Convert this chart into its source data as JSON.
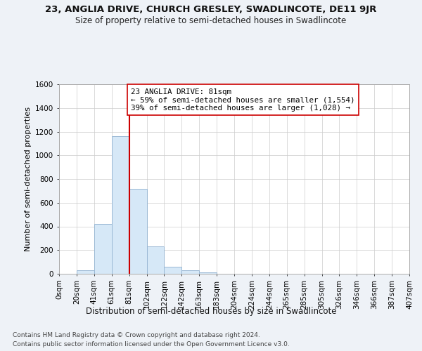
{
  "title_line1": "23, ANGLIA DRIVE, CHURCH GRESLEY, SWADLINCOTE, DE11 9JR",
  "title_line2": "Size of property relative to semi-detached houses in Swadlincote",
  "xlabel": "Distribution of semi-detached houses by size in Swadlincote",
  "ylabel": "Number of semi-detached properties",
  "footer_line1": "Contains HM Land Registry data © Crown copyright and database right 2024.",
  "footer_line2": "Contains public sector information licensed under the Open Government Licence v3.0.",
  "annotation_line1": "23 ANGLIA DRIVE: 81sqm",
  "annotation_line2": "← 59% of semi-detached houses are smaller (1,554)",
  "annotation_line3": "39% of semi-detached houses are larger (1,028) →",
  "bin_labels": [
    "0sqm",
    "20sqm",
    "41sqm",
    "61sqm",
    "81sqm",
    "102sqm",
    "122sqm",
    "142sqm",
    "163sqm",
    "183sqm",
    "204sqm",
    "224sqm",
    "244sqm",
    "265sqm",
    "285sqm",
    "305sqm",
    "326sqm",
    "346sqm",
    "366sqm",
    "387sqm",
    "407sqm"
  ],
  "counts": [
    0,
    30,
    420,
    1160,
    720,
    230,
    60,
    30,
    10,
    0,
    0,
    0,
    0,
    0,
    0,
    0,
    0,
    0,
    0,
    0
  ],
  "property_bin_index": 4,
  "bar_color": "#d6e8f7",
  "bar_edge_color": "#9ab8d4",
  "redline_color": "#cc0000",
  "annotation_box_color": "#ffffff",
  "annotation_box_edge": "#cc0000",
  "ylim": [
    0,
    1600
  ],
  "yticks": [
    0,
    200,
    400,
    600,
    800,
    1000,
    1200,
    1400,
    1600
  ],
  "grid_color": "#cccccc",
  "background_color": "#eef2f7",
  "plot_bg_color": "#ffffff",
  "title_fontsize": 9.5,
  "subtitle_fontsize": 8.5,
  "ylabel_fontsize": 8,
  "xlabel_fontsize": 8.5,
  "tick_fontsize": 7.5,
  "annotation_fontsize": 7.8,
  "footer_fontsize": 6.5
}
